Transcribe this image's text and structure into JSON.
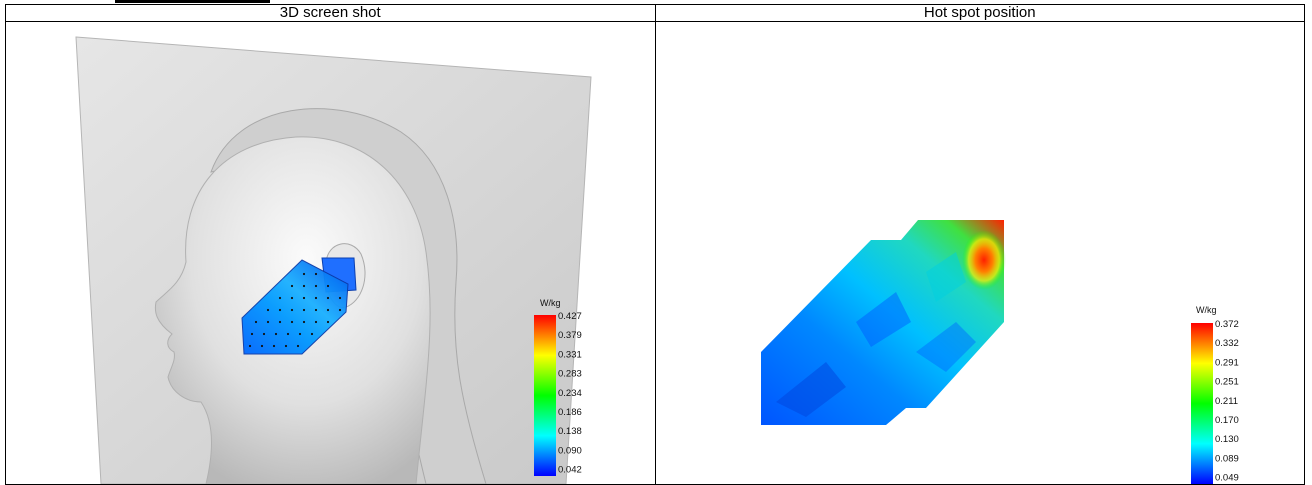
{
  "table": {
    "left_header": "3D screen shot",
    "right_header": "Hot spot position"
  },
  "left_scale": {
    "unit": "W/kg",
    "ticks": [
      "0.427",
      "0.379",
      "0.331",
      "0.283",
      "0.234",
      "0.186",
      "0.138",
      "0.090",
      "0.042"
    ]
  },
  "right_scale": {
    "unit": "W/kg",
    "ticks": [
      "0.372",
      "0.332",
      "0.291",
      "0.251",
      "0.211",
      "0.170",
      "0.130",
      "0.089",
      "0.049"
    ]
  },
  "colors": {
    "scale_top": "#ff0000",
    "scale_mid_high": "#ffff00",
    "scale_mid": "#00ff00",
    "scale_mid_low": "#00ffff",
    "scale_bottom": "#0000ff"
  }
}
